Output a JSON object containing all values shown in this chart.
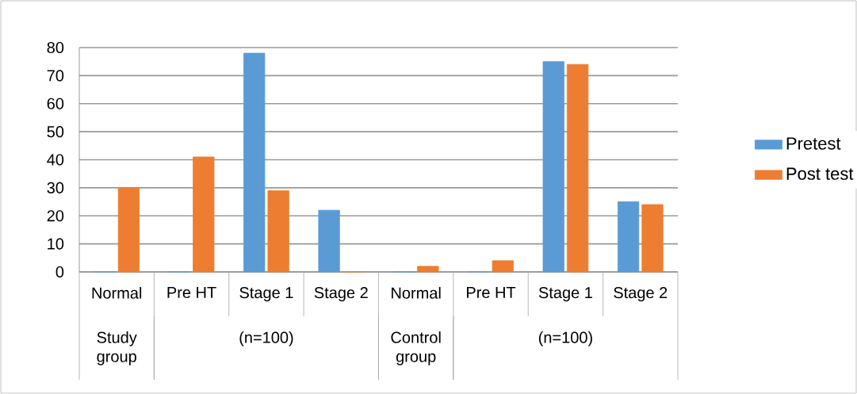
{
  "chart_data": {
    "type": "bar",
    "categories": [
      "Normal",
      "Pre HT",
      "Stage 1",
      "Stage 2",
      "Normal",
      "Pre HT",
      "Stage 1",
      "Stage 2"
    ],
    "series": [
      {
        "name": "Pretest",
        "color": "#5b9bd5",
        "values": [
          0,
          0,
          78,
          22,
          0,
          0,
          75,
          25
        ]
      },
      {
        "name": "Post test",
        "color": "#ed7d31",
        "values": [
          30,
          41,
          29,
          0,
          2,
          4,
          74,
          24
        ]
      }
    ],
    "annotations": [
      "Study group",
      "(n=100)",
      "Control group",
      "(n=100)"
    ],
    "ylim": [
      0,
      80
    ],
    "yticks": [
      0,
      10,
      20,
      30,
      40,
      50,
      60,
      70,
      80
    ],
    "grid": "y",
    "legend": "right"
  }
}
